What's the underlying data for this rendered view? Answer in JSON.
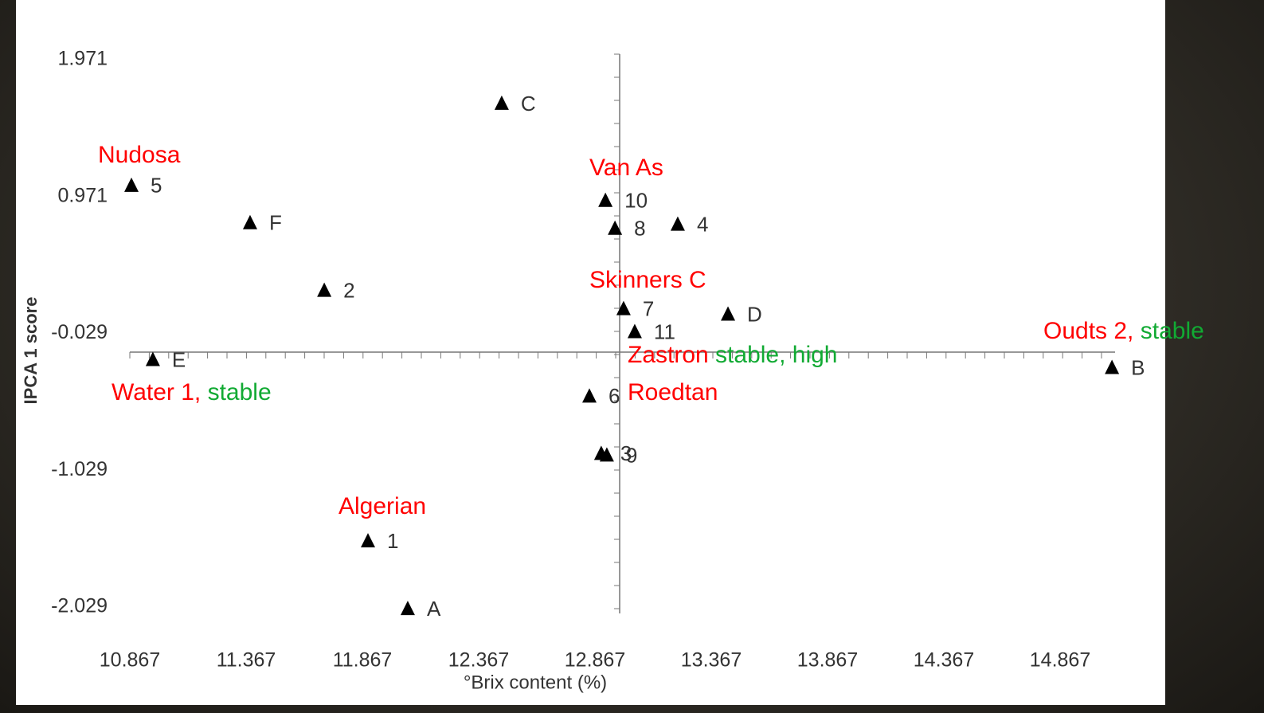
{
  "chart_data": {
    "type": "scatter",
    "x_label": "°Brix content (%)",
    "y_label": "IPCA 1 score",
    "x": [
      12.466,
      10.874,
      11.384,
      11.703,
      10.966,
      12.912,
      12.953,
      13.223,
      12.99,
      13.038,
      13.439,
      15.09,
      12.843,
      12.894,
      12.918,
      11.891,
      12.062
    ],
    "values": [
      1.651,
      1.052,
      0.779,
      0.285,
      -0.221,
      0.942,
      0.738,
      0.768,
      0.151,
      -0.017,
      0.111,
      -0.279,
      -0.488,
      -0.907,
      -0.919,
      -1.546,
      -2.041
    ],
    "point_labels": [
      "C",
      "5",
      "F",
      "2",
      "E",
      "10",
      "8",
      "4",
      "7",
      "11",
      "D",
      "B",
      "6",
      "3",
      "9",
      "1",
      "A"
    ],
    "color": "#000000",
    "xlim": [
      10.767,
      15.267
    ],
    "xticks": [
      10.867,
      11.367,
      11.867,
      12.367,
      12.867,
      13.367,
      13.867,
      14.367,
      14.867
    ],
    "ylim": [
      -2.229,
      2.171
    ],
    "yticks": [
      1.971,
      0.971,
      -0.029,
      -1.029,
      -2.029
    ],
    "annotations": [
      {
        "parts": [
          {
            "text": "Nudosa",
            "color": "#ff0000"
          }
        ]
      },
      {
        "parts": [
          {
            "text": "Van As",
            "color": "#ff0000"
          }
        ]
      },
      {
        "parts": [
          {
            "text": "Skinners C",
            "color": "#ff0000"
          }
        ]
      },
      {
        "parts": [
          {
            "text": "Zastron",
            "color": "#ff0000"
          },
          {
            "text": " stable, high",
            "color": "#11aa33"
          }
        ]
      },
      {
        "parts": [
          {
            "text": "Roedtan",
            "color": "#ff0000"
          }
        ]
      },
      {
        "parts": [
          {
            "text": "Water 1,",
            "color": "#ff0000"
          },
          {
            "text": " stable",
            "color": "#11aa33"
          }
        ]
      },
      {
        "parts": [
          {
            "text": "Oudts 2,",
            "color": "#ff0000"
          },
          {
            "text": " stable",
            "color": "#11aa33"
          }
        ]
      },
      {
        "parts": [
          {
            "text": "Algerian",
            "color": "#ff0000"
          }
        ]
      }
    ]
  }
}
